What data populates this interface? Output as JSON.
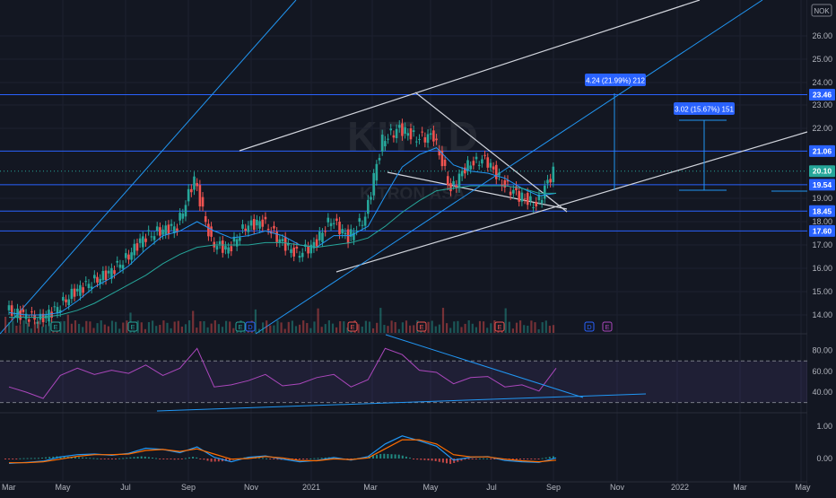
{
  "chart_data": [
    {
      "type": "candlestick",
      "watermark": {
        "symbol": "KIT 1D",
        "name": "KITRON ASA"
      },
      "currency": "NOK",
      "price_axis": {
        "ticks": [
          "26.00",
          "25.00",
          "24.00",
          "23.00",
          "22.00",
          "19.00",
          "18.00",
          "17.00",
          "16.00",
          "15.00",
          "14.00"
        ],
        "tick_values": [
          26,
          25,
          24,
          23,
          22,
          19,
          18,
          17,
          16,
          15,
          14
        ]
      },
      "price_labels": [
        {
          "text": "23.46",
          "value": 23.46,
          "color": "#2962ff"
        },
        {
          "text": "21.06",
          "value": 21.06,
          "color": "#2962ff"
        },
        {
          "text": "20.10",
          "value": 20.1,
          "color": "#26a69a"
        },
        {
          "text": "19.54",
          "value": 19.54,
          "color": "#2962ff"
        },
        {
          "text": "18.45",
          "value": 18.45,
          "color": "#2962ff"
        },
        {
          "text": "17.60",
          "value": 17.6,
          "color": "#2962ff"
        }
      ],
      "measurements": [
        {
          "text": "4.24 (21.99%) 212"
        },
        {
          "text": "3.02 (15.67%) 151"
        }
      ],
      "time_axis": [
        "Mar",
        "May",
        "Jul",
        "Sep",
        "Nov",
        "2021",
        "Mar",
        "May",
        "Jul",
        "Sep",
        "Nov",
        "2022",
        "Mar",
        "May"
      ],
      "event_markers": [
        "E",
        "E",
        "E",
        "D",
        "E",
        "E",
        "E",
        "D",
        "E"
      ],
      "series": [
        {
          "name": "",
          "kind": "close",
          "x": [
            0,
            4,
            8,
            12,
            16,
            20,
            24,
            28,
            32,
            36,
            40,
            44,
            48,
            52,
            56,
            60,
            64,
            68,
            72,
            76,
            80,
            84,
            88,
            92,
            96,
            100,
            104,
            108,
            112,
            116,
            120,
            124,
            128
          ],
          "values": [
            14.2,
            14.0,
            13.8,
            14.3,
            15.0,
            15.4,
            15.8,
            16.4,
            17.3,
            17.6,
            17.8,
            19.8,
            17.1,
            16.8,
            17.8,
            18.0,
            17.2,
            16.6,
            17.0,
            18.1,
            17.3,
            18.2,
            21.5,
            22.0,
            21.6,
            21.7,
            19.3,
            20.4,
            20.7,
            19.6,
            19.1,
            18.7,
            20.1
          ]
        },
        {
          "name": "",
          "kind": "ma",
          "color": "#2196f3",
          "values": [
            14.1,
            14.0,
            14.0,
            14.1,
            14.6,
            15.2,
            15.6,
            16.1,
            16.8,
            17.4,
            17.6,
            18.0,
            17.6,
            17.3,
            17.4,
            17.6,
            17.4,
            17.0,
            16.9,
            17.4,
            17.4,
            17.8,
            19.1,
            20.3,
            20.9,
            21.2,
            20.4,
            20.1,
            20.0,
            19.8,
            19.4,
            19.1,
            19.2
          ]
        },
        {
          "name": "",
          "kind": "ma",
          "color": "#26a69a",
          "values": [
            13.9,
            13.9,
            13.9,
            14.0,
            14.2,
            14.5,
            14.9,
            15.3,
            15.7,
            16.2,
            16.6,
            16.9,
            17.0,
            17.0,
            17.0,
            17.1,
            17.1,
            17.0,
            16.9,
            17.0,
            17.1,
            17.3,
            17.8,
            18.4,
            18.9,
            19.3,
            19.4,
            19.5,
            19.5,
            19.5,
            19.4,
            19.2,
            19.2
          ]
        }
      ],
      "rsi": {
        "ticks": [
          "80.00",
          "60.00",
          "40.00"
        ],
        "tick_values": [
          80,
          60,
          40
        ],
        "bands": [
          70,
          30
        ],
        "values": [
          45,
          40,
          34,
          56,
          63,
          57,
          61,
          58,
          66,
          56,
          63,
          82,
          45,
          47,
          51,
          57,
          46,
          48,
          54,
          57,
          45,
          52,
          82,
          76,
          61,
          59,
          48,
          54,
          55,
          45,
          47,
          41,
          63
        ]
      },
      "macd": {
        "ticks": [
          "1.00",
          "0.00"
        ],
        "tick_values": [
          1.0,
          0.0
        ],
        "macd": [
          -0.15,
          -0.12,
          -0.08,
          0.05,
          0.12,
          0.14,
          0.1,
          0.16,
          0.32,
          0.28,
          0.18,
          0.36,
          0.04,
          -0.1,
          0.04,
          0.08,
          -0.02,
          -0.1,
          -0.06,
          0.03,
          -0.05,
          0.06,
          0.45,
          0.7,
          0.55,
          0.38,
          -0.05,
          0.04,
          0.06,
          -0.06,
          -0.1,
          -0.12,
          0.02
        ],
        "signal": [
          -0.13,
          -0.13,
          -0.1,
          -0.02,
          0.07,
          0.12,
          0.12,
          0.14,
          0.25,
          0.28,
          0.22,
          0.3,
          0.14,
          -0.02,
          0.0,
          0.06,
          0.02,
          -0.06,
          -0.07,
          -0.01,
          -0.03,
          0.02,
          0.3,
          0.58,
          0.58,
          0.45,
          0.12,
          0.05,
          0.05,
          -0.02,
          -0.07,
          -0.1,
          -0.05
        ]
      }
    }
  ]
}
